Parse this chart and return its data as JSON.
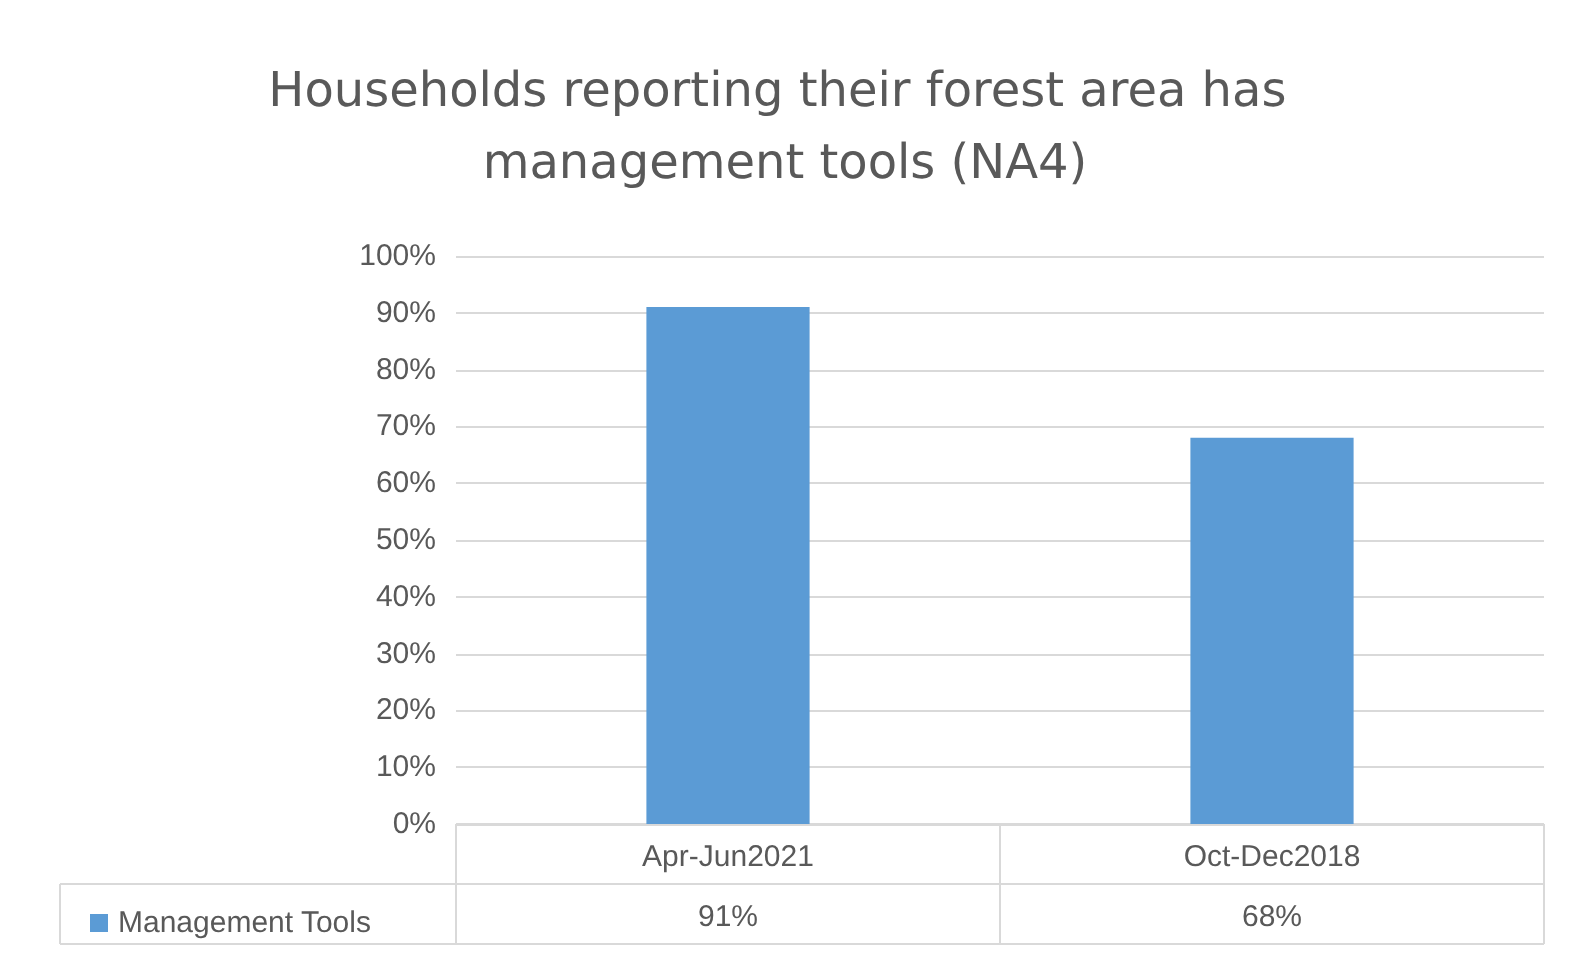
{
  "chart_data": {
    "type": "bar",
    "title": "Households reporting their forest area has management tools (NA4)",
    "categories": [
      "Apr-Jun2021",
      "Oct-Dec2018"
    ],
    "series": [
      {
        "name": "Management Tools",
        "color": "#5b9bd5",
        "values": [
          91,
          68
        ],
        "value_labels": [
          "91%",
          "68%"
        ]
      }
    ],
    "ylim": [
      0,
      100
    ],
    "yticks": [
      {
        "value": 0,
        "label": "0%"
      },
      {
        "value": 10,
        "label": "10%"
      },
      {
        "value": 20,
        "label": "20%"
      },
      {
        "value": 30,
        "label": "30%"
      },
      {
        "value": 40,
        "label": "40%"
      },
      {
        "value": 50,
        "label": "50%"
      },
      {
        "value": 60,
        "label": "60%"
      },
      {
        "value": 70,
        "label": "70%"
      },
      {
        "value": 80,
        "label": "80%"
      },
      {
        "value": 90,
        "label": "90%"
      },
      {
        "value": 100,
        "label": "100%"
      }
    ],
    "grid": "y",
    "legend": "bottom"
  }
}
